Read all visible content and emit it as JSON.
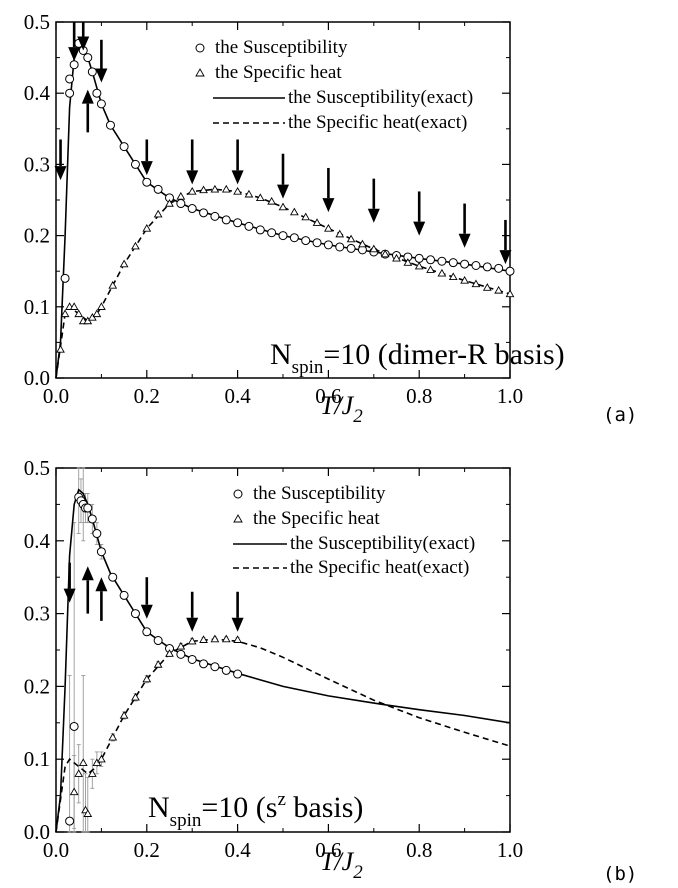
{
  "chart_data": [
    {
      "type": "line",
      "panel_tag": "(a)",
      "xlim": [
        0,
        1.0
      ],
      "ylim": [
        0,
        0.5
      ],
      "xticks": [
        "0.0",
        "0.2",
        "0.4",
        "0.6",
        "0.8",
        "1.0"
      ],
      "yticks": [
        "0.0",
        "0.1",
        "0.2",
        "0.3",
        "0.4",
        "0.5"
      ],
      "xlabel_main": "T/J",
      "xlabel_sub": "2",
      "legend": [
        "the Susceptibility",
        "the Specific heat",
        "the Susceptibility(exact)",
        "the Specific heat(exact)"
      ],
      "annotation_main": "N",
      "annotation_sub": "spin",
      "annotation_rest": "=10 (dimer-R basis)",
      "series": [
        {
          "name": "the Susceptibility",
          "marker": "circle",
          "x": [
            0.02,
            0.03,
            0.03,
            0.04,
            0.05,
            0.06,
            0.07,
            0.08,
            0.09,
            0.1,
            0.12,
            0.15,
            0.175,
            0.2,
            0.225,
            0.25,
            0.275,
            0.3,
            0.325,
            0.35,
            0.375,
            0.4,
            0.425,
            0.45,
            0.475,
            0.5,
            0.525,
            0.55,
            0.575,
            0.6,
            0.625,
            0.65,
            0.675,
            0.7,
            0.725,
            0.75,
            0.775,
            0.8,
            0.825,
            0.85,
            0.875,
            0.9,
            0.925,
            0.95,
            0.975,
            1.0
          ],
          "y": [
            0.14,
            0.4,
            0.42,
            0.44,
            0.47,
            0.46,
            0.45,
            0.43,
            0.4,
            0.385,
            0.355,
            0.325,
            0.3,
            0.275,
            0.265,
            0.253,
            0.245,
            0.238,
            0.232,
            0.227,
            0.222,
            0.218,
            0.213,
            0.208,
            0.204,
            0.2,
            0.197,
            0.193,
            0.19,
            0.187,
            0.184,
            0.182,
            0.18,
            0.177,
            0.174,
            0.172,
            0.17,
            0.168,
            0.166,
            0.164,
            0.162,
            0.16,
            0.158,
            0.156,
            0.154,
            0.15
          ]
        },
        {
          "name": "the Specific heat",
          "marker": "triangle",
          "x": [
            0.01,
            0.02,
            0.03,
            0.04,
            0.05,
            0.06,
            0.07,
            0.08,
            0.09,
            0.1,
            0.125,
            0.15,
            0.175,
            0.2,
            0.225,
            0.25,
            0.275,
            0.3,
            0.325,
            0.35,
            0.375,
            0.4,
            0.425,
            0.45,
            0.475,
            0.5,
            0.525,
            0.55,
            0.575,
            0.6,
            0.625,
            0.65,
            0.675,
            0.7,
            0.725,
            0.75,
            0.775,
            0.8,
            0.825,
            0.85,
            0.875,
            0.9,
            0.925,
            0.95,
            0.975,
            1.0
          ],
          "y": [
            0.04,
            0.09,
            0.1,
            0.1,
            0.09,
            0.08,
            0.08,
            0.085,
            0.09,
            0.1,
            0.13,
            0.16,
            0.185,
            0.21,
            0.23,
            0.245,
            0.255,
            0.262,
            0.264,
            0.265,
            0.265,
            0.262,
            0.258,
            0.253,
            0.248,
            0.24,
            0.233,
            0.226,
            0.218,
            0.21,
            0.202,
            0.195,
            0.188,
            0.181,
            0.174,
            0.168,
            0.162,
            0.157,
            0.152,
            0.147,
            0.142,
            0.137,
            0.132,
            0.127,
            0.123,
            0.118
          ]
        },
        {
          "name": "the Susceptibility(exact)",
          "style": "solid",
          "x": [
            0.0,
            0.01,
            0.02,
            0.03,
            0.04,
            0.05,
            0.06,
            0.07,
            0.08,
            0.1,
            0.12,
            0.15,
            0.2,
            0.25,
            0.3,
            0.4,
            0.5,
            0.6,
            0.7,
            0.8,
            0.9,
            1.0
          ],
          "y": [
            0.0,
            0.05,
            0.2,
            0.38,
            0.45,
            0.47,
            0.465,
            0.45,
            0.43,
            0.385,
            0.355,
            0.325,
            0.275,
            0.253,
            0.238,
            0.218,
            0.2,
            0.187,
            0.177,
            0.168,
            0.16,
            0.15
          ]
        },
        {
          "name": "the Specific heat(exact)",
          "style": "dashed",
          "x": [
            0.0,
            0.02,
            0.03,
            0.05,
            0.07,
            0.09,
            0.1,
            0.15,
            0.2,
            0.25,
            0.3,
            0.35,
            0.4,
            0.45,
            0.5,
            0.6,
            0.7,
            0.8,
            0.9,
            1.0
          ],
          "y": [
            0.0,
            0.09,
            0.1,
            0.09,
            0.08,
            0.09,
            0.1,
            0.16,
            0.21,
            0.245,
            0.262,
            0.265,
            0.262,
            0.253,
            0.24,
            0.21,
            0.181,
            0.157,
            0.137,
            0.118
          ]
        }
      ],
      "arrows": [
        {
          "x": 0.01,
          "y_from": 0.335,
          "y_to": 0.278,
          "dir": "down"
        },
        {
          "x": 0.04,
          "y_from": 0.5,
          "y_to": 0.445,
          "dir": "down"
        },
        {
          "x": 0.06,
          "y_from": 0.5,
          "y_to": 0.46,
          "dir": "down"
        },
        {
          "x": 0.07,
          "y_from": 0.345,
          "y_to": 0.405,
          "dir": "up"
        },
        {
          "x": 0.1,
          "y_from": 0.475,
          "y_to": 0.415,
          "dir": "down"
        },
        {
          "x": 0.2,
          "y_from": 0.335,
          "y_to": 0.285,
          "dir": "down"
        },
        {
          "x": 0.3,
          "y_from": 0.335,
          "y_to": 0.272,
          "dir": "down"
        },
        {
          "x": 0.4,
          "y_from": 0.335,
          "y_to": 0.272,
          "dir": "down"
        },
        {
          "x": 0.5,
          "y_from": 0.315,
          "y_to": 0.252,
          "dir": "down"
        },
        {
          "x": 0.6,
          "y_from": 0.295,
          "y_to": 0.233,
          "dir": "down"
        },
        {
          "x": 0.7,
          "y_from": 0.28,
          "y_to": 0.218,
          "dir": "down"
        },
        {
          "x": 0.8,
          "y_from": 0.262,
          "y_to": 0.2,
          "dir": "down"
        },
        {
          "x": 0.9,
          "y_from": 0.245,
          "y_to": 0.183,
          "dir": "down"
        },
        {
          "x": 0.99,
          "y_from": 0.222,
          "y_to": 0.16,
          "dir": "down"
        }
      ]
    },
    {
      "type": "line",
      "panel_tag": "(b)",
      "xlim": [
        0,
        1.0
      ],
      "ylim": [
        0,
        0.5
      ],
      "xticks": [
        "0.0",
        "0.2",
        "0.4",
        "0.6",
        "0.8",
        "1.0"
      ],
      "yticks": [
        "0.0",
        "0.1",
        "0.2",
        "0.3",
        "0.4",
        "0.5"
      ],
      "xlabel_main": "T/J",
      "xlabel_sub": "2",
      "legend": [
        "the Susceptibility",
        "the Specific heat",
        "the Susceptibility(exact)",
        "the Specific heat(exact)"
      ],
      "annotation_main": "N",
      "annotation_sub": "spin",
      "annotation_rest": "=10 (s",
      "annotation_sup": "z",
      "annotation_tail": " basis)",
      "series": [
        {
          "name": "the Susceptibility",
          "marker": "circle",
          "x": [
            0.03,
            0.04,
            0.05,
            0.055,
            0.06,
            0.065,
            0.07,
            0.08,
            0.09,
            0.1,
            0.125,
            0.15,
            0.175,
            0.2,
            0.225,
            0.25,
            0.275,
            0.3,
            0.325,
            0.35,
            0.375,
            0.4
          ],
          "y": [
            0.015,
            0.145,
            0.46,
            0.455,
            0.45,
            0.445,
            0.445,
            0.43,
            0.41,
            0.385,
            0.35,
            0.325,
            0.3,
            0.275,
            0.263,
            0.252,
            0.244,
            0.237,
            0.231,
            0.227,
            0.222,
            0.217
          ],
          "err": [
            0.2,
            0.28,
            0.05,
            0.03,
            0.05,
            0.02,
            0.02,
            0.02,
            0.015,
            0.01,
            0.005,
            0.005,
            0.005,
            0.005,
            0.005,
            0.003,
            0.003,
            0.003,
            0.003,
            0.003,
            0.003,
            0.003
          ]
        },
        {
          "name": "the Specific heat",
          "marker": "triangle",
          "x": [
            0.04,
            0.05,
            0.06,
            0.065,
            0.07,
            0.08,
            0.09,
            0.1,
            0.125,
            0.15,
            0.175,
            0.2,
            0.225,
            0.25,
            0.275,
            0.3,
            0.325,
            0.35,
            0.375,
            0.4
          ],
          "y": [
            0.055,
            0.08,
            0.095,
            0.03,
            0.025,
            0.08,
            0.095,
            0.1,
            0.13,
            0.16,
            0.185,
            0.21,
            0.23,
            0.245,
            0.255,
            0.262,
            0.264,
            0.265,
            0.265,
            0.264
          ],
          "err": [
            0.05,
            0.04,
            0.12,
            0.05,
            0.05,
            0.02,
            0.015,
            0.01,
            0.005,
            0.005,
            0.005,
            0.005,
            0.004,
            0.004,
            0.004,
            0.004,
            0.003,
            0.003,
            0.003,
            0.003
          ]
        },
        {
          "name": "the Susceptibility(exact)",
          "style": "solid",
          "x": [
            0.0,
            0.01,
            0.02,
            0.03,
            0.04,
            0.05,
            0.06,
            0.07,
            0.08,
            0.1,
            0.12,
            0.15,
            0.2,
            0.25,
            0.3,
            0.4,
            0.5,
            0.6,
            0.7,
            0.8,
            0.9,
            1.0
          ],
          "y": [
            0.0,
            0.05,
            0.2,
            0.38,
            0.45,
            0.47,
            0.465,
            0.45,
            0.43,
            0.385,
            0.355,
            0.325,
            0.275,
            0.253,
            0.238,
            0.218,
            0.2,
            0.187,
            0.177,
            0.168,
            0.16,
            0.15
          ]
        },
        {
          "name": "the Specific heat(exact)",
          "style": "dashed",
          "x": [
            0.0,
            0.02,
            0.03,
            0.05,
            0.07,
            0.09,
            0.1,
            0.15,
            0.2,
            0.25,
            0.3,
            0.35,
            0.4,
            0.45,
            0.5,
            0.6,
            0.7,
            0.8,
            0.9,
            1.0
          ],
          "y": [
            0.0,
            0.09,
            0.1,
            0.09,
            0.08,
            0.09,
            0.1,
            0.16,
            0.21,
            0.245,
            0.262,
            0.265,
            0.262,
            0.253,
            0.24,
            0.21,
            0.181,
            0.157,
            0.137,
            0.118
          ]
        }
      ],
      "arrows": [
        {
          "x": 0.03,
          "y_from": 0.37,
          "y_to": 0.315,
          "dir": "down"
        },
        {
          "x": 0.07,
          "y_from": 0.3,
          "y_to": 0.365,
          "dir": "up"
        },
        {
          "x": 0.1,
          "y_from": 0.29,
          "y_to": 0.35,
          "dir": "up"
        },
        {
          "x": 0.2,
          "y_from": 0.35,
          "y_to": 0.293,
          "dir": "down"
        },
        {
          "x": 0.3,
          "y_from": 0.33,
          "y_to": 0.275,
          "dir": "down"
        },
        {
          "x": 0.4,
          "y_from": 0.33,
          "y_to": 0.275,
          "dir": "down"
        }
      ]
    }
  ]
}
